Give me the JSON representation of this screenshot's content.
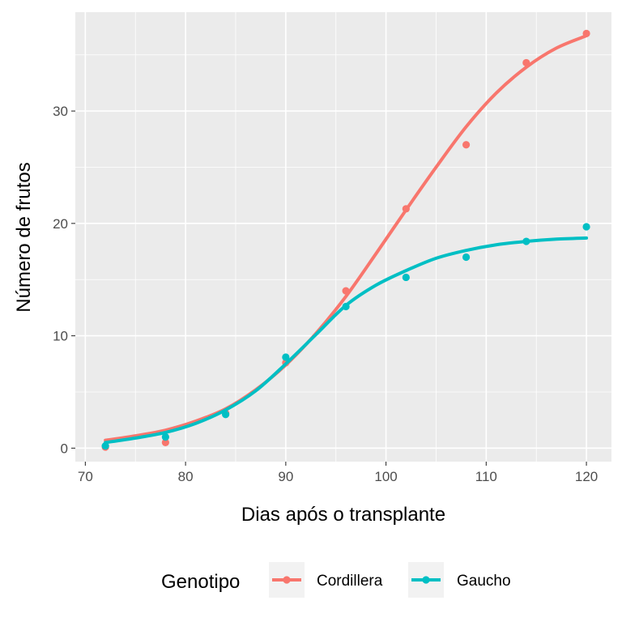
{
  "chart_data": {
    "type": "line",
    "xlabel": "Dias após o transplante",
    "ylabel": "Número de frutos",
    "xlim": [
      69,
      122.5
    ],
    "ylim": [
      -1.2,
      38.8
    ],
    "x_ticks": [
      70,
      80,
      90,
      100,
      110,
      120
    ],
    "y_ticks": [
      0,
      10,
      20,
      30
    ],
    "x_tick_labels": [
      "70",
      "80",
      "90",
      "100",
      "110",
      "120"
    ],
    "y_tick_labels": [
      "0",
      "10",
      "20",
      "30"
    ],
    "grid": true,
    "legend": {
      "title": "Genotipo",
      "position": "bottom"
    },
    "series": [
      {
        "name": "Cordillera",
        "color": "#F8766D",
        "points": {
          "x": [
            72,
            78,
            84,
            90,
            96,
            102,
            108,
            114,
            120
          ],
          "y": [
            0.1,
            0.5,
            3.1,
            7.6,
            14.0,
            21.3,
            27.0,
            34.3,
            36.9
          ]
        },
        "fit": {
          "x": [
            72,
            75,
            78,
            81,
            84,
            87,
            90,
            93,
            96,
            99,
            102,
            105,
            108,
            111,
            114,
            117,
            120
          ],
          "y": [
            0.7,
            1.1,
            1.6,
            2.4,
            3.5,
            5.2,
            7.4,
            10.2,
            13.5,
            17.3,
            21.2,
            25.0,
            28.6,
            31.6,
            33.9,
            35.6,
            36.7
          ]
        }
      },
      {
        "name": "Gaucho",
        "color": "#00BFC4",
        "points": {
          "x": [
            72,
            78,
            84,
            90,
            96,
            102,
            108,
            114,
            120
          ],
          "y": [
            0.2,
            1.0,
            3.0,
            8.1,
            12.6,
            15.2,
            17.0,
            18.4,
            19.7
          ]
        },
        "fit": {
          "x": [
            72,
            75,
            78,
            81,
            84,
            87,
            90,
            93,
            96,
            99,
            102,
            105,
            108,
            111,
            114,
            117,
            120
          ],
          "y": [
            0.5,
            0.9,
            1.4,
            2.2,
            3.4,
            5.1,
            7.5,
            10.1,
            12.7,
            14.5,
            15.8,
            16.9,
            17.6,
            18.1,
            18.4,
            18.6,
            18.7
          ]
        }
      }
    ]
  }
}
